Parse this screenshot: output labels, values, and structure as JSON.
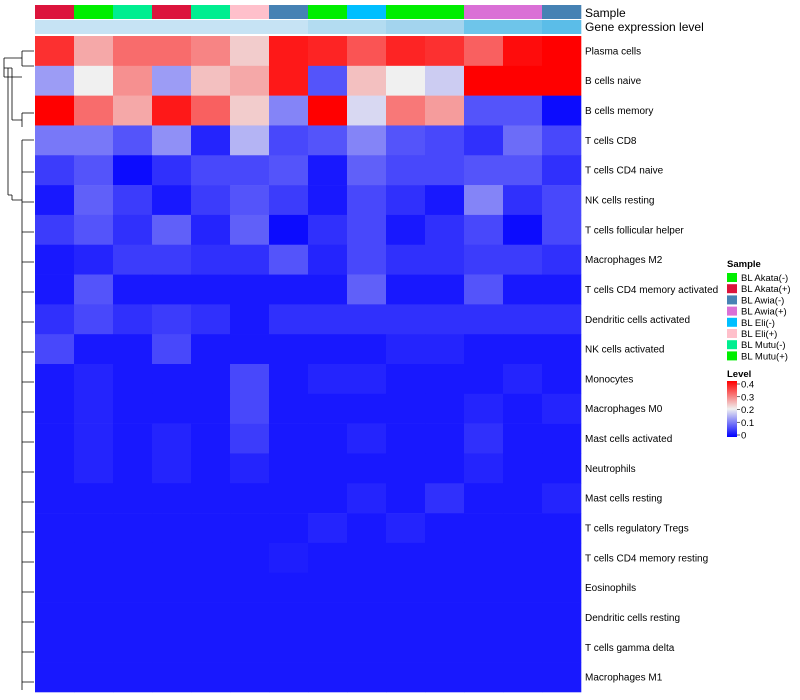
{
  "chart_data": {
    "type": "heatmap",
    "title": "",
    "annotation_labels": {
      "sample": "Sample",
      "gene_expression_level": "Gene expression level"
    },
    "columns": [
      {
        "sample": "BL Akata(+)",
        "level_color": "#c6e3f4"
      },
      {
        "sample": "BL Mutu(+)",
        "level_color": "#c6e3f4"
      },
      {
        "sample": "BL Mutu(-)",
        "level_color": "#c6e3f4"
      },
      {
        "sample": "BL Akata(+)",
        "level_color": "#c6e3f4"
      },
      {
        "sample": "BL Mutu(-)",
        "level_color": "#c6e3f4"
      },
      {
        "sample": "BL Eli(+)",
        "level_color": "#c6e3f4"
      },
      {
        "sample": "BL Awia(-)",
        "level_color": "#c6e3f4"
      },
      {
        "sample": "BL Mutu(+)",
        "level_color": "#b3dcf1"
      },
      {
        "sample": "BL Eli(-)",
        "level_color": "#b3dcf1"
      },
      {
        "sample": "BL Akata(-)",
        "level_color": "#a3d4ee"
      },
      {
        "sample": "BL Akata(-)",
        "level_color": "#a3d4ee"
      },
      {
        "sample": "BL Awia(+)",
        "level_color": "#6ec5ea"
      },
      {
        "sample": "BL Awia(+)",
        "level_color": "#6ec5ea"
      },
      {
        "sample": "BL Awia(-)",
        "level_color": "#5bbde8"
      }
    ],
    "rows": [
      "Plasma cells",
      "B cells naive",
      "B cells memory",
      "T cells CD8",
      "T cells CD4 naive",
      "NK cells resting",
      "T cells follicular helper",
      "Macrophages M2",
      "T cells CD4 memory activated",
      "Dendritic cells activated",
      "NK cells activated",
      "Monocytes",
      "Macrophages M0",
      "Mast cells activated",
      "Neutrophils",
      "Mast cells resting",
      "T cells regulatory  Tregs",
      "T cells CD4 memory resting",
      "Eosinophils",
      "Dendritic cells resting",
      "T cells gamma delta",
      "Macrophages M1"
    ],
    "values": [
      [
        0.36,
        0.26,
        0.31,
        0.31,
        0.29,
        0.23,
        0.38,
        0.37,
        0.33,
        0.37,
        0.36,
        0.32,
        0.39,
        0.4
      ],
      [
        0.13,
        0.2,
        0.28,
        0.13,
        0.24,
        0.26,
        0.38,
        0.07,
        0.24,
        0.2,
        0.17,
        0.41,
        0.41,
        0.41
      ],
      [
        0.4,
        0.31,
        0.26,
        0.38,
        0.32,
        0.23,
        0.11,
        0.41,
        0.18,
        0.3,
        0.27,
        0.07,
        0.07,
        0.01
      ],
      [
        0.1,
        0.1,
        0.07,
        0.12,
        0.03,
        0.15,
        0.06,
        0.07,
        0.11,
        0.07,
        0.06,
        0.04,
        0.09,
        0.06
      ],
      [
        0.05,
        0.07,
        0.01,
        0.04,
        0.06,
        0.06,
        0.07,
        0.02,
        0.08,
        0.06,
        0.06,
        0.07,
        0.07,
        0.04
      ],
      [
        0.02,
        0.08,
        0.05,
        0.02,
        0.05,
        0.07,
        0.05,
        0.02,
        0.06,
        0.04,
        0.02,
        0.11,
        0.04,
        0.06
      ],
      [
        0.05,
        0.07,
        0.04,
        0.08,
        0.03,
        0.08,
        0.01,
        0.04,
        0.06,
        0.02,
        0.04,
        0.06,
        0.01,
        0.06
      ],
      [
        0.02,
        0.03,
        0.05,
        0.05,
        0.04,
        0.04,
        0.07,
        0.03,
        0.06,
        0.04,
        0.04,
        0.05,
        0.05,
        0.04
      ],
      [
        0.02,
        0.07,
        0.02,
        0.02,
        0.02,
        0.02,
        0.02,
        0.02,
        0.08,
        0.02,
        0.02,
        0.07,
        0.02,
        0.02
      ],
      [
        0.04,
        0.06,
        0.04,
        0.05,
        0.04,
        0.02,
        0.04,
        0.04,
        0.04,
        0.04,
        0.04,
        0.04,
        0.04,
        0.04
      ],
      [
        0.06,
        0.02,
        0.02,
        0.06,
        0.02,
        0.02,
        0.02,
        0.02,
        0.02,
        0.03,
        0.03,
        0.02,
        0.02,
        0.02
      ],
      [
        0.02,
        0.03,
        0.02,
        0.02,
        0.02,
        0.06,
        0.02,
        0.03,
        0.03,
        0.02,
        0.02,
        0.02,
        0.03,
        0.02
      ],
      [
        0.02,
        0.03,
        0.02,
        0.02,
        0.02,
        0.06,
        0.02,
        0.02,
        0.02,
        0.02,
        0.02,
        0.03,
        0.02,
        0.03
      ],
      [
        0.02,
        0.03,
        0.02,
        0.03,
        0.02,
        0.05,
        0.02,
        0.02,
        0.03,
        0.02,
        0.02,
        0.04,
        0.02,
        0.02
      ],
      [
        0.02,
        0.03,
        0.02,
        0.03,
        0.02,
        0.03,
        0.02,
        0.02,
        0.02,
        0.02,
        0.02,
        0.03,
        0.02,
        0.02
      ],
      [
        0.02,
        0.02,
        0.02,
        0.02,
        0.02,
        0.02,
        0.02,
        0.02,
        0.03,
        0.02,
        0.04,
        0.02,
        0.02,
        0.03
      ],
      [
        0.02,
        0.02,
        0.02,
        0.02,
        0.02,
        0.02,
        0.02,
        0.03,
        0.02,
        0.03,
        0.02,
        0.02,
        0.02,
        0.02
      ],
      [
        0.02,
        0.02,
        0.02,
        0.02,
        0.02,
        0.02,
        0.025,
        0.02,
        0.02,
        0.02,
        0.02,
        0.02,
        0.02,
        0.02
      ],
      [
        0.02,
        0.02,
        0.02,
        0.02,
        0.02,
        0.02,
        0.02,
        0.02,
        0.02,
        0.02,
        0.02,
        0.02,
        0.02,
        0.02
      ],
      [
        0.02,
        0.02,
        0.02,
        0.02,
        0.02,
        0.02,
        0.02,
        0.02,
        0.02,
        0.02,
        0.02,
        0.02,
        0.02,
        0.02
      ],
      [
        0.02,
        0.02,
        0.02,
        0.02,
        0.02,
        0.02,
        0.02,
        0.02,
        0.02,
        0.02,
        0.02,
        0.02,
        0.02,
        0.02
      ],
      [
        0.02,
        0.02,
        0.02,
        0.02,
        0.02,
        0.02,
        0.02,
        0.02,
        0.02,
        0.02,
        0.02,
        0.02,
        0.02,
        0.02
      ]
    ],
    "color_scale": {
      "min": 0,
      "max": 0.4,
      "colors": [
        "#0000ff",
        "#f0f0f0",
        "#ff0000"
      ]
    },
    "legend": {
      "sample_title": "Sample",
      "sample_entries": [
        {
          "label": "BL Akata(-)",
          "color": "#00ee00"
        },
        {
          "label": "BL Akata(+)",
          "color": "#dc143c"
        },
        {
          "label": "BL Awia(-)",
          "color": "#4682b4"
        },
        {
          "label": "BL Awia(+)",
          "color": "#da70d6"
        },
        {
          "label": "BL Eli(-)",
          "color": "#00bfff"
        },
        {
          "label": "BL Eli(+)",
          "color": "#ffc0cb"
        },
        {
          "label": "BL Mutu(-)",
          "color": "#00ee90"
        },
        {
          "label": "BL Mutu(+)",
          "color": "#00ee00"
        }
      ],
      "level_title": "Level",
      "level_ticks": [
        "0.4",
        "0.3",
        "0.2",
        "0.1",
        "0"
      ],
      "position": "right"
    },
    "dendrogram": "row clustering tree shown on left"
  }
}
